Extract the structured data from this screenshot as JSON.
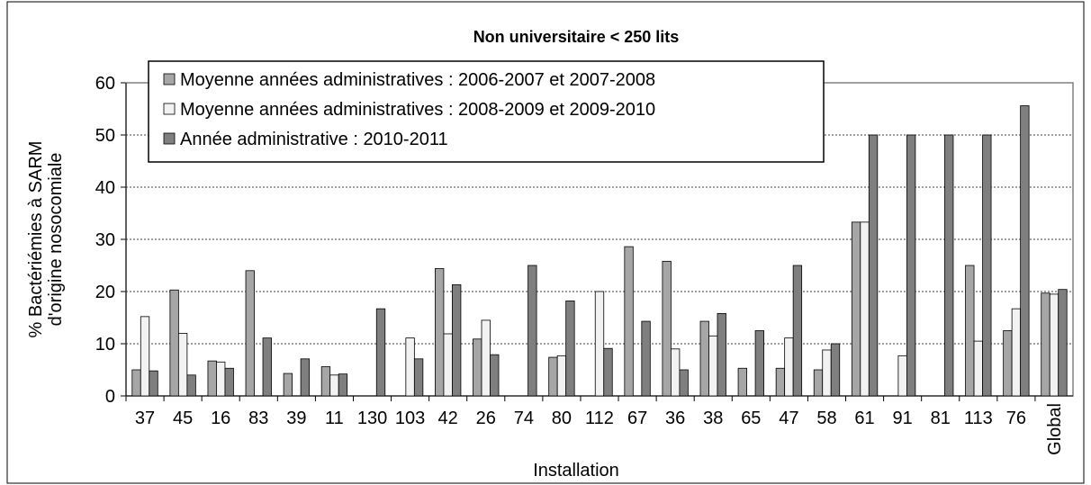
{
  "chart_data": {
    "type": "bar",
    "title": "Non universitaire < 250 lits",
    "xlabel": "Installation",
    "ylabel": [
      "% Bactériémies à SARM",
      "d'origine nosocomiale"
    ],
    "categories": [
      "37",
      "45",
      "16",
      "83",
      "39",
      "11",
      "130",
      "103",
      "42",
      "26",
      "74",
      "80",
      "112",
      "67",
      "36",
      "38",
      "65",
      "47",
      "58",
      "61",
      "91",
      "81",
      "113",
      "76",
      "Global"
    ],
    "series": [
      {
        "name": "Moyenne années administratives : 2006-2007 et 2007-2008",
        "color": "#a6a6a6",
        "values": [
          5.0,
          20.3,
          6.7,
          24.0,
          4.3,
          5.6,
          0,
          0,
          24.4,
          10.9,
          0,
          7.4,
          0,
          28.6,
          25.8,
          14.3,
          5.3,
          5.3,
          5.0,
          33.3,
          0,
          0,
          25.0,
          12.5,
          19.7
        ]
      },
      {
        "name": "Moyenne années administratives : 2008-2009 et 2009-2010",
        "color": "#f2f2f2",
        "values": [
          15.2,
          12.0,
          6.5,
          0,
          0,
          4.0,
          0,
          11.1,
          11.9,
          14.5,
          0,
          7.7,
          20.0,
          0,
          9.0,
          11.5,
          0,
          11.1,
          8.8,
          33.3,
          7.7,
          0,
          10.5,
          16.7,
          19.5
        ]
      },
      {
        "name": "Année administrative : 2010-2011",
        "color": "#7f7f7f",
        "values": [
          4.8,
          4.0,
          5.3,
          11.1,
          7.1,
          4.2,
          16.7,
          7.1,
          21.3,
          7.9,
          25.0,
          18.2,
          9.1,
          14.3,
          5.0,
          15.8,
          12.5,
          25.0,
          10.0,
          50.0,
          50.0,
          50.0,
          50.0,
          55.6,
          20.4
        ]
      }
    ],
    "ylim": [
      0,
      60
    ],
    "yticks": [
      0,
      10,
      20,
      30,
      40,
      50,
      60
    ],
    "grid": true
  }
}
